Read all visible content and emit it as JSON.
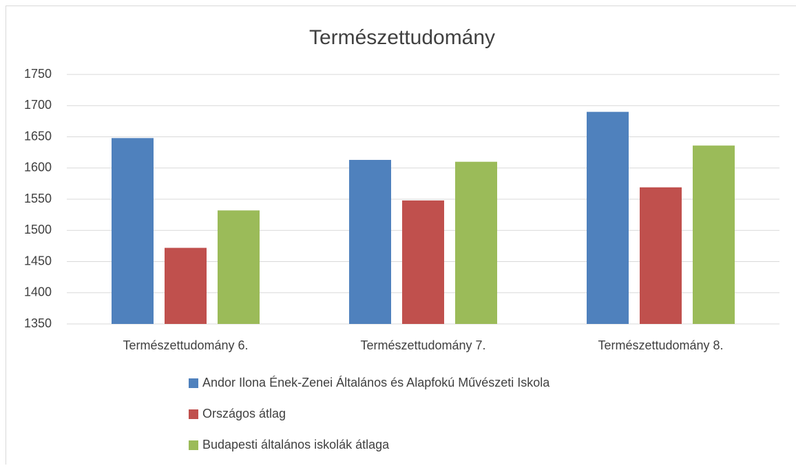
{
  "chart_data": {
    "type": "bar",
    "title": "Természettudomány",
    "categories": [
      "Természettudomány 6.",
      "Természettudomány 7.",
      "Természettudomány 8."
    ],
    "series": [
      {
        "name": "Andor Ilona Ének-Zenei Általános és Alapfokú Művészeti Iskola",
        "color": "#4f81bd",
        "values": [
          1648,
          1613,
          1690
        ]
      },
      {
        "name": "Országos átlag",
        "color": "#c0504d",
        "values": [
          1472,
          1548,
          1569
        ]
      },
      {
        "name": "Budapesti általános iskolák átlaga",
        "color": "#9bbb59",
        "values": [
          1532,
          1610,
          1636
        ]
      }
    ],
    "ylim": [
      1350,
      1750
    ],
    "yticks": [
      1350,
      1400,
      1450,
      1500,
      1550,
      1600,
      1650,
      1700,
      1750
    ],
    "grid": true,
    "legend": "bottom"
  }
}
